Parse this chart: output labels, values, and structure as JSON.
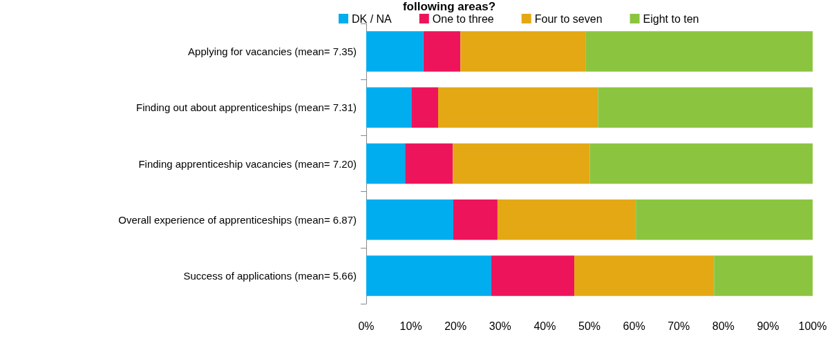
{
  "chart_data": {
    "type": "bar",
    "orientation": "horizontal",
    "stacked": true,
    "title": "following areas?",
    "categories": [
      "Applying for vacancies (mean= 7.35)",
      "Finding out about apprenticeships (mean= 7.31)",
      "Finding apprenticeship vacancies (mean= 7.20)",
      "Overall experience of apprenticeships (mean= 6.87)",
      "Success of applications (mean= 5.66)"
    ],
    "series": [
      {
        "name": "DK / NA",
        "color": "#00adef",
        "values": [
          12.8,
          10.1,
          8.7,
          19.5,
          28.0
        ]
      },
      {
        "name": "One to three",
        "color": "#ed145b",
        "values": [
          8.3,
          6.0,
          10.7,
          9.9,
          18.6
        ]
      },
      {
        "name": "Four to seven",
        "color": "#e3a814",
        "values": [
          28.1,
          35.8,
          30.7,
          31.0,
          31.3
        ]
      },
      {
        "name": "Eight to ten",
        "color": "#8bc53f",
        "values": [
          50.8,
          48.1,
          49.9,
          39.6,
          22.1
        ]
      }
    ],
    "xlim": [
      0,
      100
    ],
    "xticks": [
      {
        "value": 0,
        "label": "0%"
      },
      {
        "value": 10,
        "label": "10%"
      },
      {
        "value": 20,
        "label": "20%"
      },
      {
        "value": 30,
        "label": "30%"
      },
      {
        "value": 40,
        "label": "40%"
      },
      {
        "value": 50,
        "label": "50%"
      },
      {
        "value": 60,
        "label": "60%"
      },
      {
        "value": 70,
        "label": "70%"
      },
      {
        "value": 80,
        "label": "80%"
      },
      {
        "value": 90,
        "label": "90%"
      },
      {
        "value": 100,
        "label": "100%"
      }
    ],
    "grid": false,
    "legend": "top"
  }
}
